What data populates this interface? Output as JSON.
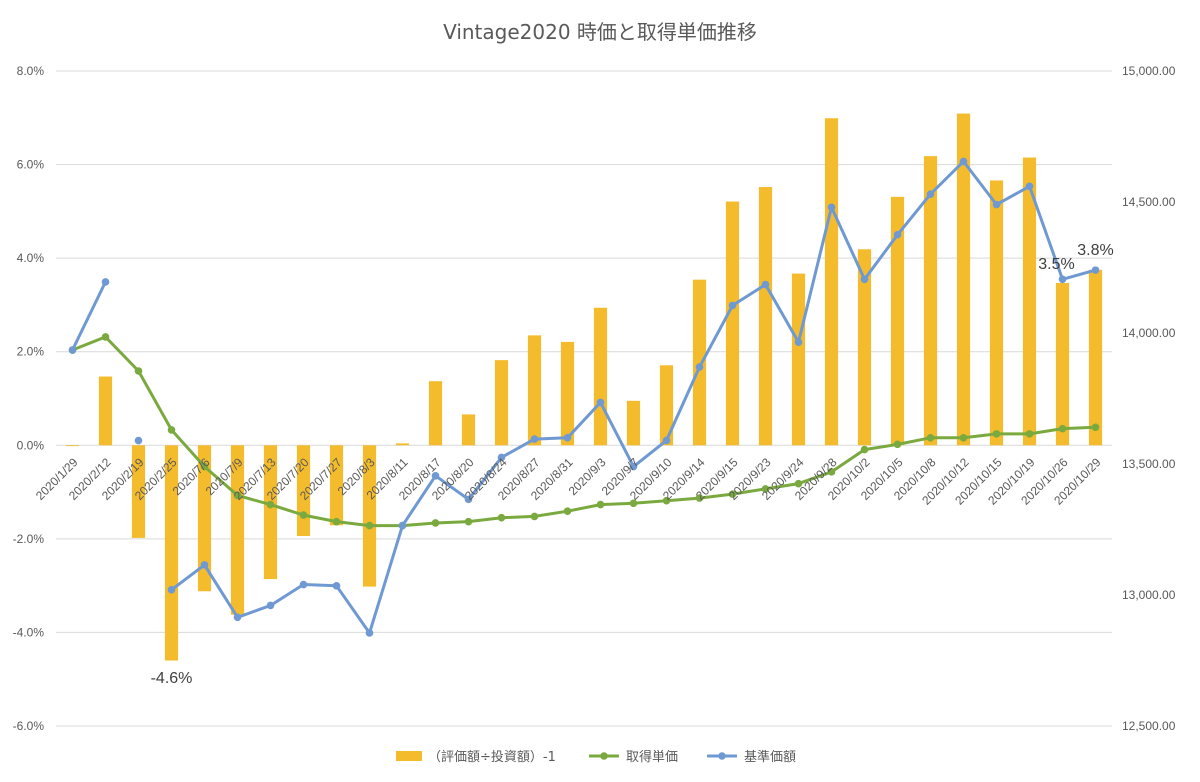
{
  "colors": {
    "bars": "#F4BC2C",
    "acq_line": "#7AAA3F",
    "nav_line": "#6F99D2",
    "grid": "#D9D9D9",
    "text": "#595959"
  },
  "chart_data": {
    "type": "bar",
    "title": "Vintage2020 時価と取得単価推移",
    "categories": [
      "2020/1/29",
      "2020/2/12",
      "2020/2/19",
      "2020/2/25",
      "2020/7/6",
      "2020/7/9",
      "2020/7/13",
      "2020/7/20",
      "2020/7/27",
      "2020/8/3",
      "2020/8/11",
      "2020/8/17",
      "2020/8/20",
      "2020/8/24",
      "2020/8/27",
      "2020/8/31",
      "2020/9/3",
      "2020/9/7",
      "2020/9/10",
      "2020/9/14",
      "2020/9/15",
      "2020/9/23",
      "2020/9/24",
      "2020/9/28",
      "2020/10/2",
      "2020/10/5",
      "2020/10/8",
      "2020/10/12",
      "2020/10/15",
      "2020/10/19",
      "2020/10/26",
      "2020/10/29"
    ],
    "y_left": {
      "min": -6.0,
      "max": 8.0,
      "step": 2.0,
      "tick_labels": [
        "-6.0%",
        "-4.0%",
        "-2.0%",
        "0.0%",
        "2.0%",
        "4.0%",
        "6.0%",
        "8.0%"
      ]
    },
    "y_right": {
      "min": 12500,
      "max": 15000,
      "step": 500,
      "tick_labels": [
        "12,500.00",
        "13,000.00",
        "13,500.00",
        "14,000.00",
        "14,500.00",
        "15,000.00"
      ]
    },
    "grid": true,
    "legend_position": "bottom",
    "series": [
      {
        "name": "（評価額÷投資額）-1",
        "kind": "bar",
        "axis": "left",
        "values": [
          0.0,
          1.47,
          -1.98,
          -4.6,
          -3.12,
          -3.62,
          -2.86,
          -1.94,
          -1.71,
          -3.02,
          0.04,
          1.37,
          0.66,
          1.82,
          2.35,
          2.21,
          2.94,
          0.95,
          1.71,
          3.54,
          5.21,
          5.52,
          3.67,
          6.99,
          4.19,
          5.31,
          6.18,
          7.09,
          5.66,
          6.15,
          3.47,
          3.75
        ]
      },
      {
        "name": "取得単価",
        "kind": "line",
        "axis": "right",
        "values": [
          13935,
          13985,
          13855,
          13630,
          13490,
          13380,
          13345,
          13305,
          13280,
          13265,
          13265,
          13275,
          13280,
          13295,
          13300,
          13320,
          13345,
          13350,
          13360,
          13370,
          13385,
          13405,
          13425,
          13470,
          13555,
          13575,
          13600,
          13600,
          13615,
          13615,
          13635,
          13640
        ]
      },
      {
        "name": "基準価額",
        "kind": "line",
        "axis": "right",
        "values": [
          13935,
          14195,
          null,
          13020,
          13115,
          12915,
          12960,
          13040,
          13035,
          12855,
          13265,
          13455,
          13365,
          13525,
          13595,
          13600,
          13735,
          13490,
          13590,
          13870,
          14105,
          14185,
          13965,
          14480,
          14205,
          14375,
          14530,
          14655,
          14490,
          14560,
          14205,
          14240
        ]
      }
    ],
    "annotations": [
      {
        "text": "-4.6%",
        "category_index": 3
      },
      {
        "text": "3.5%",
        "category_index": 30
      },
      {
        "text": "3.8%",
        "category_index": 31
      }
    ]
  }
}
